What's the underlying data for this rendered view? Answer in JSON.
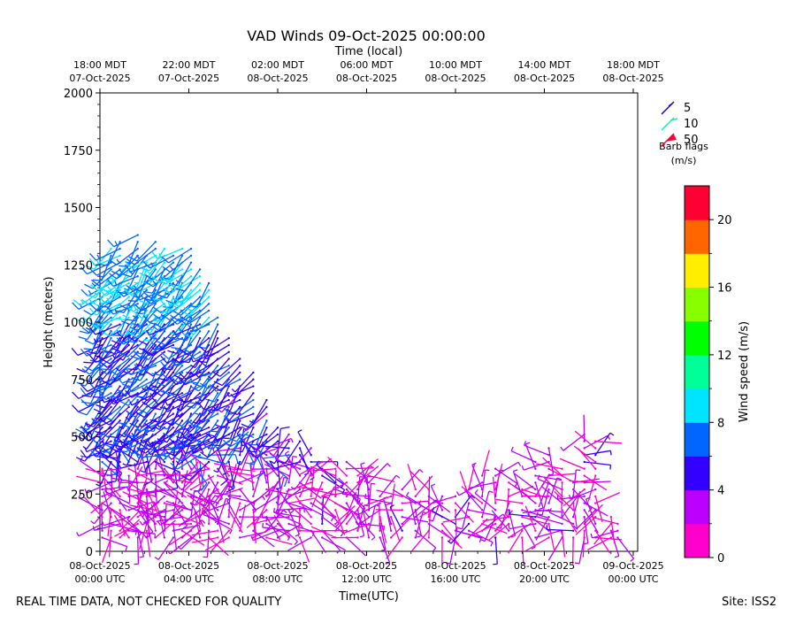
{
  "chart_data": {
    "type": "vad_wind_barbs",
    "title": "VAD Winds 09-Oct-2025 00:00:00",
    "top_axis_label": "Time (local)",
    "xlabel": "Time(UTC)",
    "ylabel": "Height (meters)",
    "colorbar_label": "Wind speed (m/s)",
    "x_unit": "hours since 08-Oct-2025 00:00 UTC",
    "xlim": [
      0,
      24.2
    ],
    "ylim": [
      0,
      2000
    ],
    "yticks": [
      0,
      250,
      500,
      750,
      1000,
      1250,
      1500,
      1750,
      2000
    ],
    "xticks_utc": [
      {
        "x": 0,
        "l1": "08-Oct-2025",
        "l2": "00:00 UTC"
      },
      {
        "x": 4,
        "l1": "08-Oct-2025",
        "l2": "04:00 UTC"
      },
      {
        "x": 8,
        "l1": "08-Oct-2025",
        "l2": "08:00 UTC"
      },
      {
        "x": 12,
        "l1": "08-Oct-2025",
        "l2": "12:00 UTC"
      },
      {
        "x": 16,
        "l1": "08-Oct-2025",
        "l2": "16:00 UTC"
      },
      {
        "x": 20,
        "l1": "08-Oct-2025",
        "l2": "20:00 UTC"
      },
      {
        "x": 24,
        "l1": "09-Oct-2025",
        "l2": "00:00 UTC"
      }
    ],
    "xticks_local": [
      {
        "x": 0,
        "l1": "18:00 MDT",
        "l2": "07-Oct-2025"
      },
      {
        "x": 4,
        "l1": "22:00 MDT",
        "l2": "07-Oct-2025"
      },
      {
        "x": 8,
        "l1": "02:00 MDT",
        "l2": "08-Oct-2025"
      },
      {
        "x": 12,
        "l1": "06:00 MDT",
        "l2": "08-Oct-2025"
      },
      {
        "x": 16,
        "l1": "10:00 MDT",
        "l2": "08-Oct-2025"
      },
      {
        "x": 20,
        "l1": "14:00 MDT",
        "l2": "08-Oct-2025"
      },
      {
        "x": 24,
        "l1": "18:00 MDT",
        "l2": "08-Oct-2025"
      }
    ],
    "colorbar": {
      "min": 0,
      "max": 22,
      "step": 2,
      "ticks": [
        0,
        4,
        8,
        12,
        16,
        20
      ],
      "colors": [
        "#ff00cc",
        "#bb00ff",
        "#3300ff",
        "#0066ff",
        "#00e5ff",
        "#00ff99",
        "#00ff00",
        "#88ff00",
        "#ffee00",
        "#ff6600",
        "#ff0033"
      ]
    },
    "legend": {
      "items": [
        {
          "label": "5",
          "color": "#2200ee"
        },
        {
          "label": "10",
          "color": "#00ff99"
        },
        {
          "label": "50",
          "color": "#ff0033"
        }
      ],
      "caption_line1": "Barb flags",
      "caption_line2": "(m/s)"
    },
    "series": [
      {
        "t": 0.1,
        "h0": 60,
        "h1": 1150,
        "regime": "night"
      },
      {
        "t": 0.5,
        "h0": 60,
        "h1": 1330,
        "regime": "night"
      },
      {
        "t": 0.9,
        "h0": 60,
        "h1": 1350,
        "regime": "night"
      },
      {
        "t": 1.3,
        "h0": 60,
        "h1": 1280,
        "regime": "night"
      },
      {
        "t": 1.7,
        "h0": 60,
        "h1": 1380,
        "regime": "night"
      },
      {
        "t": 2.1,
        "h0": 60,
        "h1": 1310,
        "regime": "night"
      },
      {
        "t": 2.5,
        "h0": 60,
        "h1": 1360,
        "regime": "night"
      },
      {
        "t": 2.9,
        "h0": 60,
        "h1": 1330,
        "regime": "night"
      },
      {
        "t": 3.3,
        "h0": 60,
        "h1": 1310,
        "regime": "night"
      },
      {
        "t": 3.7,
        "h0": 60,
        "h1": 1330,
        "regime": "night"
      },
      {
        "t": 4.1,
        "h0": 60,
        "h1": 1320,
        "regime": "night"
      },
      {
        "t": 4.5,
        "h0": 60,
        "h1": 1230,
        "regime": "night"
      },
      {
        "t": 4.9,
        "h0": 60,
        "h1": 1180,
        "regime": "night"
      },
      {
        "t": 5.3,
        "h0": 60,
        "h1": 1040,
        "regime": "night"
      },
      {
        "t": 5.8,
        "h0": 60,
        "h1": 950,
        "regime": "night"
      },
      {
        "t": 6.3,
        "h0": 60,
        "h1": 860,
        "regime": "night"
      },
      {
        "t": 6.9,
        "h0": 60,
        "h1": 800,
        "regime": "night"
      },
      {
        "t": 7.5,
        "h0": 60,
        "h1": 660,
        "regime": "night"
      },
      {
        "t": 8.0,
        "h0": 60,
        "h1": 550,
        "regime": "night"
      },
      {
        "t": 8.5,
        "h0": 60,
        "h1": 510,
        "regime": "night"
      },
      {
        "t": 9.0,
        "h0": 60,
        "h1": 490,
        "regime": "night"
      },
      {
        "t": 9.5,
        "h0": 60,
        "h1": 460,
        "regime": "night"
      },
      {
        "t": 10.0,
        "h0": 60,
        "h1": 400,
        "regime": "day"
      },
      {
        "t": 10.6,
        "h0": 60,
        "h1": 370,
        "regime": "day"
      },
      {
        "t": 11.1,
        "h0": 60,
        "h1": 400,
        "regime": "day"
      },
      {
        "t": 11.6,
        "h0": 60,
        "h1": 340,
        "regime": "day"
      },
      {
        "t": 12.1,
        "h0": 60,
        "h1": 340,
        "regime": "day"
      },
      {
        "t": 12.6,
        "h0": 60,
        "h1": 260,
        "regime": "day"
      },
      {
        "t": 13.1,
        "h0": 60,
        "h1": 260,
        "regime": "day"
      },
      {
        "t": 13.6,
        "h0": 60,
        "h1": 270,
        "regime": "day"
      },
      {
        "t": 14.2,
        "h0": 60,
        "h1": 290,
        "regime": "day"
      },
      {
        "t": 14.8,
        "h0": 60,
        "h1": 290,
        "regime": "day"
      },
      {
        "t": 15.4,
        "h0": 60,
        "h1": 260,
        "regime": "day"
      },
      {
        "t": 16.0,
        "h0": 60,
        "h1": 260,
        "regime": "day"
      },
      {
        "t": 16.6,
        "h0": 60,
        "h1": 270,
        "regime": "day"
      },
      {
        "t": 17.2,
        "h0": 60,
        "h1": 340,
        "regime": "day"
      },
      {
        "t": 17.8,
        "h0": 60,
        "h1": 360,
        "regime": "day"
      },
      {
        "t": 18.4,
        "h0": 60,
        "h1": 300,
        "regime": "day"
      },
      {
        "t": 19.0,
        "h0": 60,
        "h1": 280,
        "regime": "day"
      },
      {
        "t": 19.6,
        "h0": 60,
        "h1": 400,
        "regime": "day"
      },
      {
        "t": 20.2,
        "h0": 60,
        "h1": 450,
        "regime": "day"
      },
      {
        "t": 20.8,
        "h0": 60,
        "h1": 360,
        "regime": "day"
      },
      {
        "t": 21.3,
        "h0": 60,
        "h1": 320,
        "regime": "day"
      },
      {
        "t": 21.8,
        "h0": 60,
        "h1": 520,
        "regime": "day"
      },
      {
        "t": 22.3,
        "h0": 60,
        "h1": 480,
        "regime": "day"
      },
      {
        "t": 23.0,
        "h0": 60,
        "h1": 170,
        "regime": "day"
      },
      {
        "t": 23.3,
        "h0": 60,
        "h1": 140,
        "regime": "day"
      }
    ]
  },
  "footer": {
    "left": "REAL TIME DATA, NOT CHECKED FOR QUALITY",
    "right": "Site: ISS2"
  }
}
